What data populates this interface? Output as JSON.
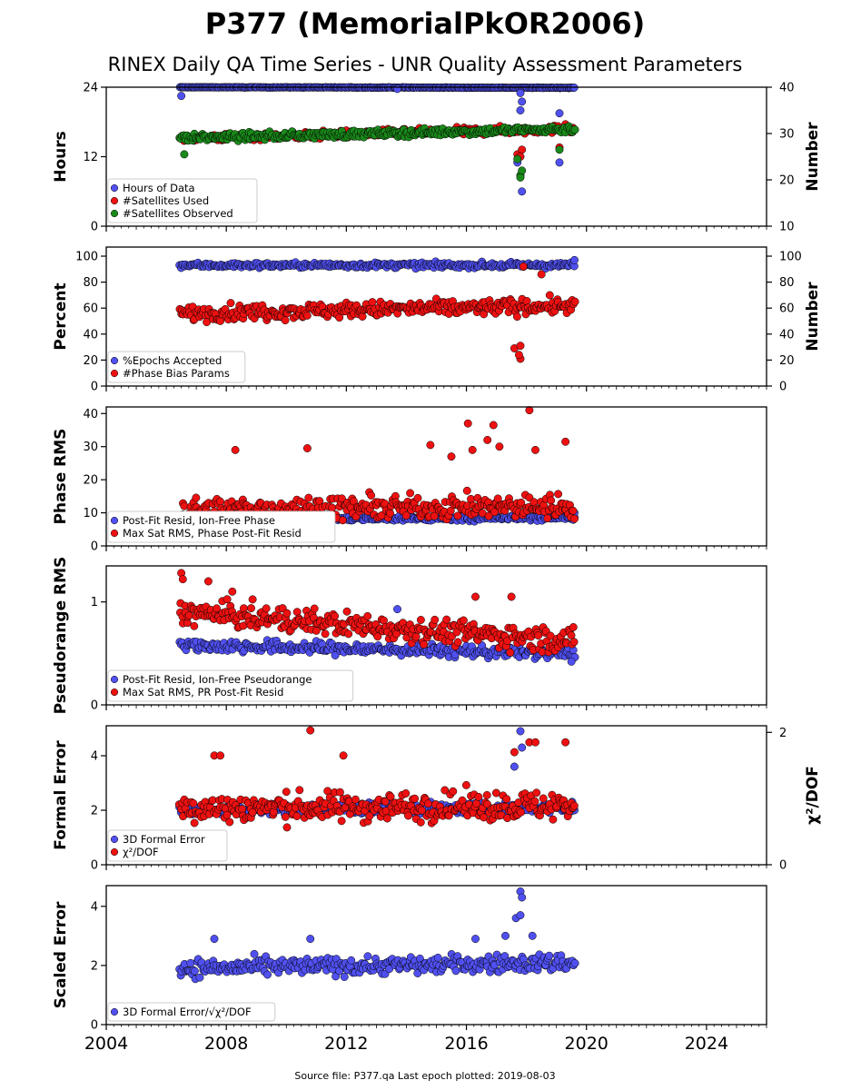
{
  "title": "P377 (MemorialPkOR2006)",
  "subtitle": "RINEX Daily QA Time Series - UNR Quality Assessment Parameters",
  "footer": "Source file: P377.qa Last epoch plotted: 2019-08-03",
  "colors": {
    "blue": "#5050f0",
    "red": "#ee1111",
    "green": "#1a8a1a"
  },
  "x_axis": {
    "range": [
      2004,
      2026
    ],
    "ticks": [
      "2004",
      "2008",
      "2012",
      "2016",
      "2020",
      "2024"
    ]
  },
  "chart_data": [
    {
      "type": "scatter",
      "ylabel": "Hours",
      "ylabel_right": "Number",
      "ylim": [
        0,
        24
      ],
      "ylim_right": [
        10,
        40
      ],
      "yticks": [
        "0",
        "12",
        "24"
      ],
      "yticks_right": [
        "10",
        "20",
        "30",
        "40"
      ],
      "legend": "lower-left",
      "series": [
        {
          "name": "Hours of Data",
          "color": "blue",
          "axis": "left",
          "band": [
            2006.45,
            2019.6,
            24,
            23.9,
            0.05
          ],
          "outliers": [
            [
              2006.5,
              22.5
            ],
            [
              2017.8,
              20
            ],
            [
              2017.85,
              21.5
            ],
            [
              2017.8,
              23
            ],
            [
              2019.1,
              19.5
            ],
            [
              2019.1,
              11
            ],
            [
              2017.7,
              11
            ],
            [
              2017.85,
              6
            ],
            [
              2013.7,
              23.7
            ]
          ]
        },
        {
          "name": "#Satellites Used",
          "color": "red",
          "axis": "right",
          "band": [
            2006.45,
            2019.6,
            29,
            31,
            0.8
          ],
          "outliers": [
            [
              2017.7,
              25.5
            ],
            [
              2017.85,
              26.5
            ],
            [
              2017.8,
              25
            ],
            [
              2019.1,
              27
            ],
            [
              2019.3,
              32
            ],
            [
              2009.3,
              30
            ]
          ]
        },
        {
          "name": "#Satellites Observed",
          "color": "green",
          "axis": "right",
          "band": [
            2006.45,
            2019.6,
            29,
            31,
            0.8
          ],
          "outliers": [
            [
              2017.7,
              24.5
            ],
            [
              2017.8,
              21
            ],
            [
              2017.85,
              22
            ],
            [
              2017.8,
              20.5
            ],
            [
              2019.1,
              26.5
            ],
            [
              2006.6,
              25.5
            ]
          ]
        }
      ]
    },
    {
      "type": "scatter",
      "ylabel": "Percent",
      "ylabel_right": "Number",
      "ylim": [
        0,
        107
      ],
      "ylim_right": [
        0,
        107
      ],
      "yticks": [
        "0",
        "20",
        "40",
        "60",
        "80",
        "100"
      ],
      "yticks_right": [
        "0",
        "20",
        "40",
        "60",
        "80",
        "100"
      ],
      "legend": "lower-left",
      "series": [
        {
          "name": "%Epochs Accepted",
          "color": "blue",
          "axis": "left",
          "band": [
            2006.45,
            2019.6,
            93,
            93,
            2
          ],
          "outliers": [
            [
              2019.6,
              97
            ]
          ]
        },
        {
          "name": "#Phase Bias Params",
          "color": "red",
          "axis": "right",
          "band": [
            2006.45,
            2019.6,
            56,
            62,
            6
          ],
          "outliers": [
            [
              2017.6,
              29
            ],
            [
              2017.8,
              31
            ],
            [
              2017.8,
              21
            ],
            [
              2017.75,
              24
            ],
            [
              2017.9,
              92
            ],
            [
              2018.5,
              86
            ]
          ]
        }
      ]
    },
    {
      "type": "scatter",
      "ylabel": "Phase RMS",
      "ylim": [
        0,
        42
      ],
      "yticks": [
        "0",
        "10",
        "20",
        "30",
        "40"
      ],
      "legend": "lower-left",
      "series": [
        {
          "name": "Post-Fit Resid, Ion-Free Phase",
          "color": "blue",
          "axis": "left",
          "band": [
            2006.45,
            2019.6,
            8,
            8.5,
            0.8
          ],
          "outliers": [
            [
              2019.6,
              10
            ]
          ]
        },
        {
          "name": "Max Sat RMS, Phase Post-Fit Resid",
          "color": "red",
          "axis": "left",
          "band": [
            2006.45,
            2019.6,
            11,
            12,
            3.5
          ],
          "outliers": [
            [
              2008.3,
              29
            ],
            [
              2010.7,
              29.5
            ],
            [
              2016.05,
              37
            ],
            [
              2016.9,
              36.5
            ],
            [
              2018.1,
              41
            ],
            [
              2019.3,
              31.5
            ],
            [
              2016.7,
              32
            ],
            [
              2017.1,
              30
            ],
            [
              2015.5,
              27
            ],
            [
              2014.8,
              30.5
            ],
            [
              2018.3,
              29
            ],
            [
              2016.2,
              29
            ]
          ]
        }
      ]
    },
    {
      "type": "scatter",
      "ylabel": "Pseudorange RMS",
      "ylim": [
        0,
        1.35
      ],
      "yticks": [
        "0",
        "1"
      ],
      "legend": "lower-left",
      "series": [
        {
          "name": "Post-Fit Resid, Ion-Free Pseudorange",
          "color": "blue",
          "axis": "left",
          "band": [
            2006.45,
            2019.6,
            0.58,
            0.5,
            0.06
          ],
          "outliers": [
            [
              2013.7,
              0.93
            ],
            [
              2019.5,
              0.42
            ]
          ]
        },
        {
          "name": "Max Sat RMS, PR Post-Fit Resid",
          "color": "red",
          "axis": "left",
          "band": [
            2006.45,
            2019.6,
            0.9,
            0.62,
            0.12
          ],
          "outliers": [
            [
              2006.5,
              1.28
            ],
            [
              2006.55,
              1.22
            ],
            [
              2007.4,
              1.2
            ],
            [
              2008.2,
              1.1
            ],
            [
              2016.3,
              1.05
            ],
            [
              2017.5,
              1.05
            ]
          ]
        }
      ]
    },
    {
      "type": "scatter",
      "ylabel": "Formal Error",
      "ylabel_right": "χ²/DOF",
      "ylim": [
        0,
        5.1
      ],
      "ylim_right": [
        0,
        2.1
      ],
      "yticks": [
        "0",
        "2",
        "4"
      ],
      "yticks_right": [
        "0",
        "2"
      ],
      "legend": "lower-left",
      "series": [
        {
          "name": "3D Formal Error",
          "color": "blue",
          "axis": "left",
          "band": [
            2006.45,
            2019.6,
            2,
            2.1,
            0.2
          ],
          "outliers": [
            [
              2017.8,
              4.9
            ],
            [
              2017.85,
              4.3
            ],
            [
              2017.6,
              3.6
            ],
            [
              2019.6,
              2
            ]
          ]
        },
        {
          "name": "χ²/DOF",
          "color": "red",
          "axis": "right",
          "band": [
            2006.45,
            2019.6,
            0.85,
            0.9,
            0.22
          ],
          "outliers": [
            [
              2007.6,
              1.65
            ],
            [
              2007.8,
              1.65
            ],
            [
              2010.8,
              2.03
            ],
            [
              2018.1,
              1.85
            ],
            [
              2018.3,
              1.85
            ],
            [
              2019.3,
              1.85
            ],
            [
              2017.6,
              1.7
            ],
            [
              2011.9,
              1.65
            ]
          ]
        }
      ]
    },
    {
      "type": "scatter",
      "ylabel": "Scaled Error",
      "ylim": [
        0,
        4.7
      ],
      "yticks": [
        "0",
        "2",
        "4"
      ],
      "legend": "lower-left",
      "series": [
        {
          "name": "3D Formal Error/√χ²/DOF",
          "color": "blue",
          "axis": "left",
          "band": [
            2006.45,
            2019.6,
            1.9,
            2.1,
            0.3
          ],
          "outliers": [
            [
              2017.8,
              4.5
            ],
            [
              2017.85,
              4.3
            ],
            [
              2017.65,
              3.6
            ],
            [
              2017.8,
              3.7
            ],
            [
              2007.6,
              2.9
            ],
            [
              2010.8,
              2.9
            ],
            [
              2016.3,
              2.9
            ],
            [
              2017.3,
              3
            ],
            [
              2018.2,
              3
            ]
          ]
        }
      ]
    }
  ]
}
